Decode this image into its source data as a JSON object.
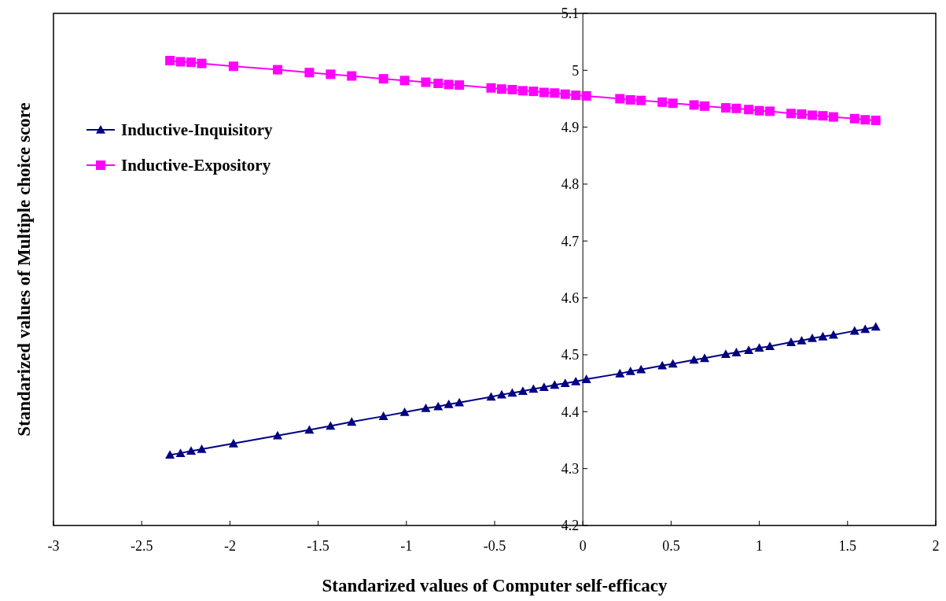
{
  "chart_data": {
    "type": "line",
    "xlabel": "Standarized values of Computer self-efficacy",
    "ylabel": "Standarized values of Multiple choice score",
    "x": [
      -2.34,
      -2.28,
      -2.22,
      -2.16,
      -1.98,
      -1.73,
      -1.55,
      -1.43,
      -1.31,
      -1.13,
      -1.01,
      -0.89,
      -0.82,
      -0.76,
      -0.7,
      -0.52,
      -0.46,
      -0.4,
      -0.34,
      -0.28,
      -0.22,
      -0.16,
      -0.1,
      -0.04,
      0.02,
      0.21,
      0.27,
      0.33,
      0.45,
      0.51,
      0.63,
      0.69,
      0.81,
      0.87,
      0.94,
      1.0,
      1.06,
      1.18,
      1.24,
      1.3,
      1.36,
      1.42,
      1.54,
      1.6,
      1.66
    ],
    "series": [
      {
        "name": "Inductive-Inquisitory",
        "color": "#000080",
        "marker": "triangle",
        "values": [
          4.324,
          4.327,
          4.331,
          4.334,
          4.344,
          4.358,
          4.368,
          4.375,
          4.382,
          4.392,
          4.399,
          4.406,
          4.409,
          4.413,
          4.416,
          4.426,
          4.43,
          4.433,
          4.436,
          4.44,
          4.443,
          4.447,
          4.45,
          4.453,
          4.457,
          4.467,
          4.471,
          4.474,
          4.481,
          4.484,
          4.491,
          4.494,
          4.501,
          4.504,
          4.508,
          4.512,
          4.515,
          4.522,
          4.525,
          4.529,
          4.532,
          4.535,
          4.542,
          4.545,
          4.549
        ]
      },
      {
        "name": "Inductive-Expository",
        "color": "#ff00ff",
        "marker": "square",
        "values": [
          5.017,
          5.015,
          5.014,
          5.012,
          5.007,
          5.001,
          4.996,
          4.993,
          4.99,
          4.985,
          4.982,
          4.979,
          4.977,
          4.975,
          4.974,
          4.969,
          4.967,
          4.966,
          4.964,
          4.963,
          4.961,
          4.96,
          4.958,
          4.956,
          4.955,
          4.95,
          4.948,
          4.947,
          4.944,
          4.942,
          4.939,
          4.937,
          4.934,
          4.933,
          4.931,
          4.929,
          4.928,
          4.924,
          4.923,
          4.921,
          4.92,
          4.918,
          4.915,
          4.913,
          4.912
        ]
      }
    ],
    "xlim": [
      -3,
      2
    ],
    "xticks": [
      -3,
      -2.5,
      -2,
      -1.5,
      -1,
      -0.5,
      0,
      0.5,
      1,
      1.5,
      2
    ],
    "ylim": [
      4.2,
      5.1
    ],
    "yticks": [
      4.2,
      4.3,
      4.4,
      4.5,
      4.6,
      4.7,
      4.8,
      4.9,
      5,
      5.1
    ],
    "grid": false,
    "legend": "top left",
    "line_style": "solid"
  }
}
